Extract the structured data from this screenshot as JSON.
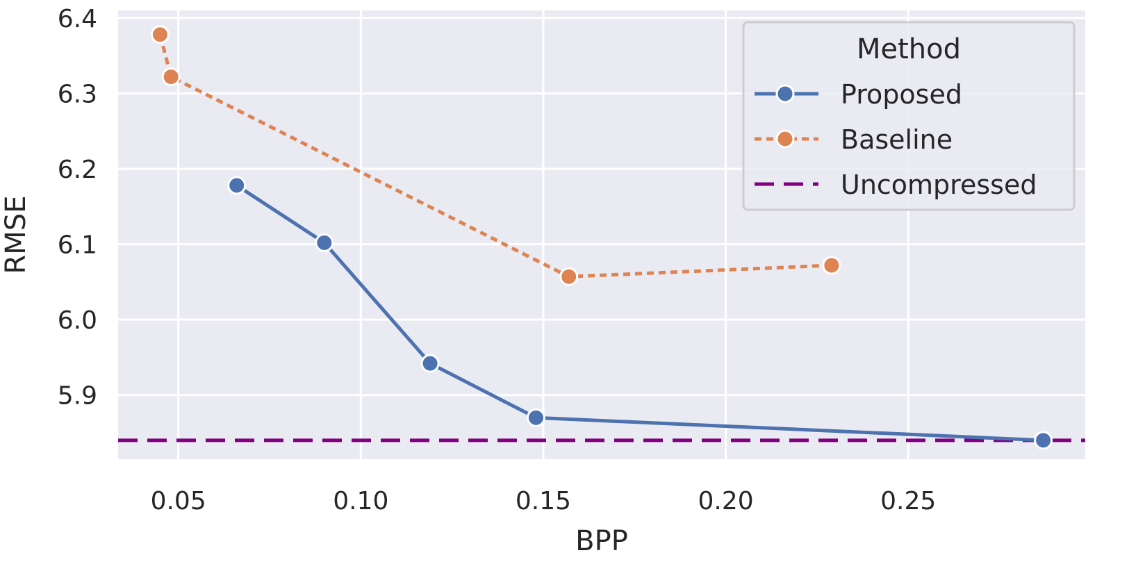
{
  "chart_data": {
    "type": "line",
    "title": "",
    "xlabel": "BPP",
    "ylabel": "RMSE",
    "xlim": [
      0.0335,
      0.2985
    ],
    "ylim": [
      5.815,
      6.41
    ],
    "xticks": [
      0.05,
      0.1,
      0.15,
      0.2,
      0.25
    ],
    "xtick_labels": [
      "0.05",
      "0.10",
      "0.15",
      "0.20",
      "0.25"
    ],
    "yticks": [
      5.9,
      6.0,
      6.1,
      6.2,
      6.3,
      6.4
    ],
    "ytick_labels": [
      "5.9",
      "6.0",
      "6.1",
      "6.2",
      "6.3",
      "6.4"
    ],
    "grid": true,
    "legend": {
      "title": "Method",
      "placement": "top-right",
      "entries": [
        "Proposed",
        "Baseline",
        "Uncompressed"
      ]
    },
    "series": [
      {
        "name": "Proposed",
        "color": "#4c72b0",
        "style": "solid",
        "marker": "circle",
        "x": [
          0.066,
          0.09,
          0.119,
          0.148,
          0.287
        ],
        "y": [
          6.178,
          6.102,
          5.942,
          5.87,
          5.84
        ]
      },
      {
        "name": "Baseline",
        "color": "#dd8452",
        "style": "dotted",
        "marker": "circle",
        "x": [
          0.045,
          0.048,
          0.157,
          0.229
        ],
        "y": [
          6.378,
          6.322,
          6.057,
          6.072
        ]
      },
      {
        "name": "Uncompressed",
        "color": "#800080",
        "style": "dashed",
        "marker": "none",
        "hline": 5.84
      }
    ]
  }
}
